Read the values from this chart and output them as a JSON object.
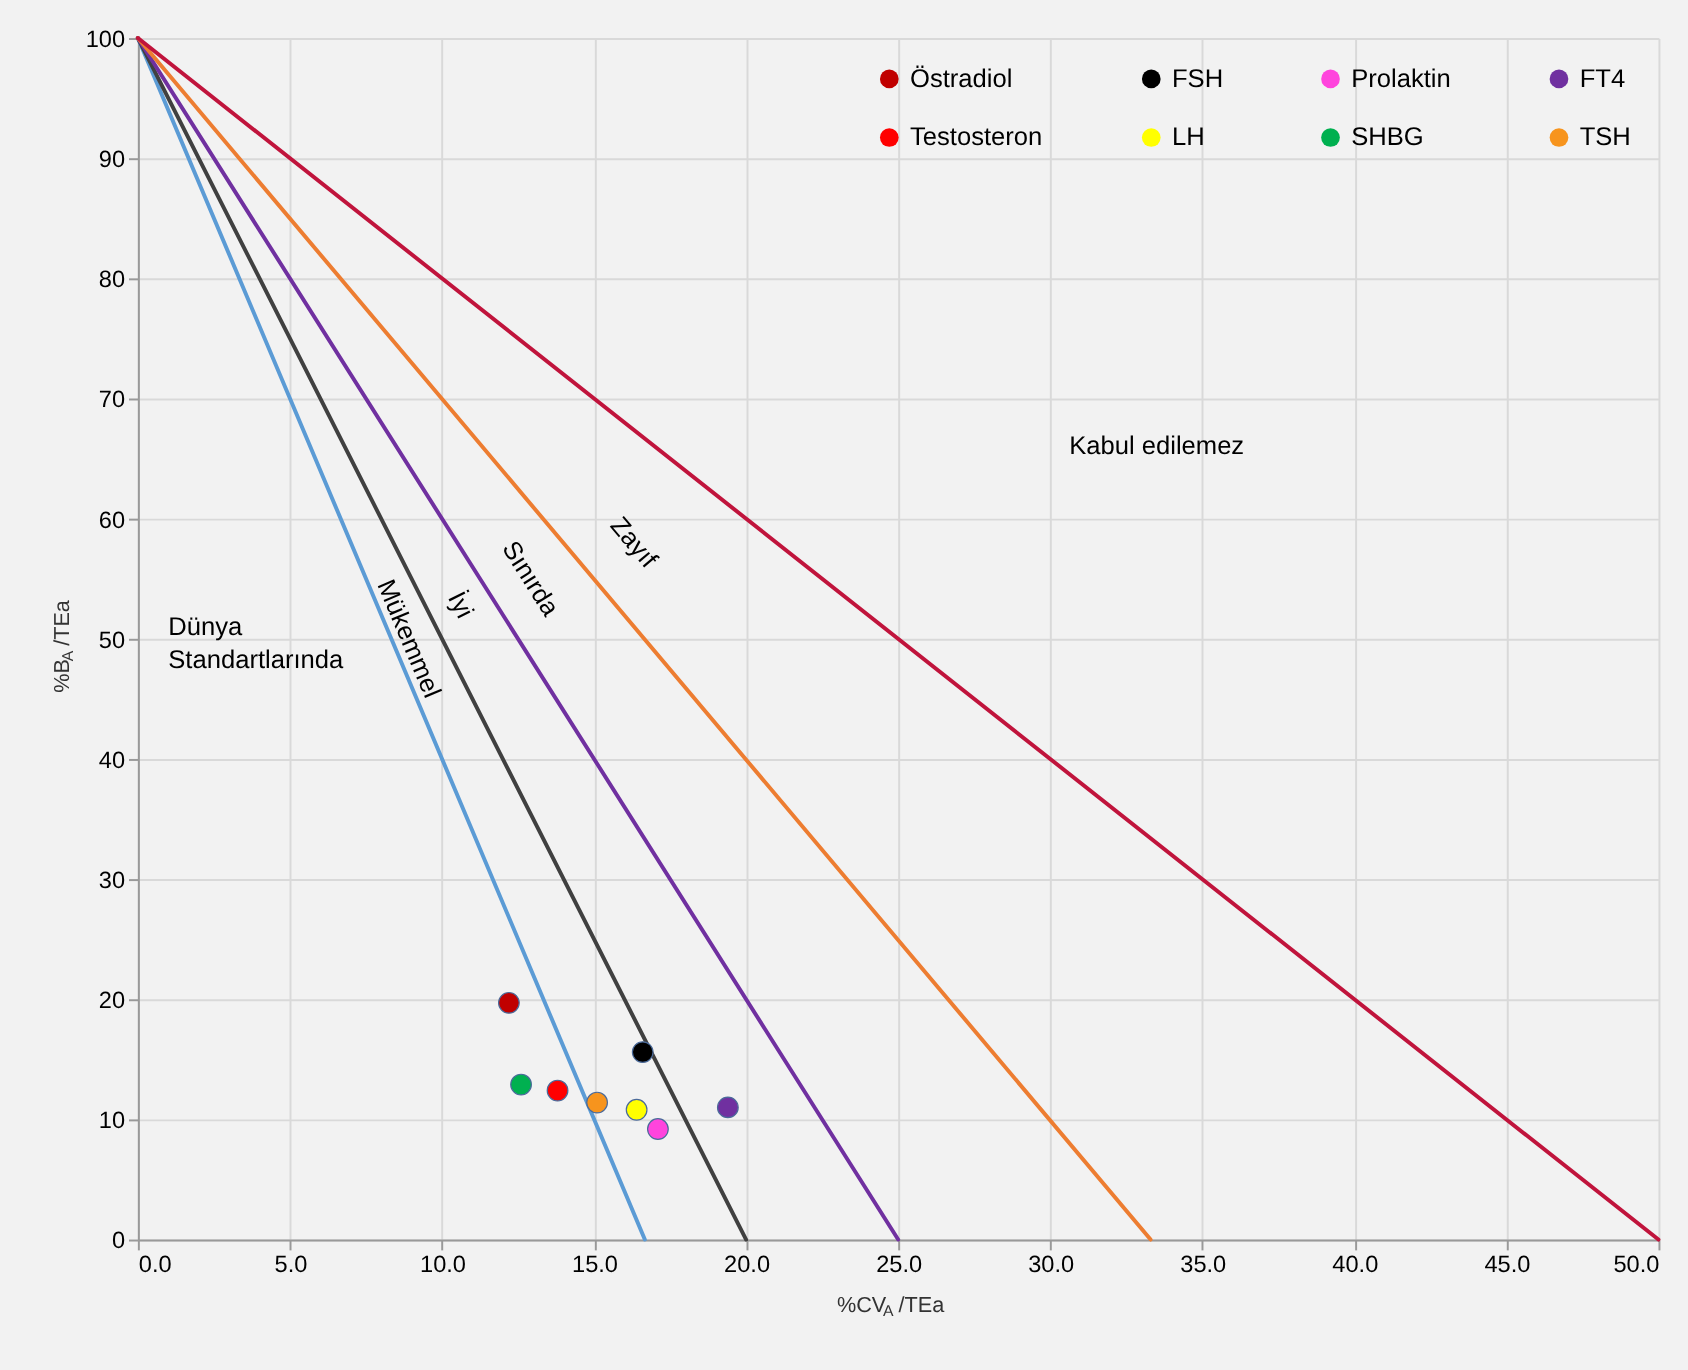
{
  "chart_data": {
    "type": "line",
    "xlabel": "%CV$_{A}$/TEa",
    "ylabel": "%B$_{A}$/TEa",
    "xlim": [
      0,
      50
    ],
    "ylim": [
      0,
      100
    ],
    "xticks": [
      {
        "value": 0,
        "label": "0.0"
      },
      {
        "value": 5,
        "label": "5.0"
      },
      {
        "value": 10,
        "label": "10.0"
      },
      {
        "value": 15,
        "label": "15.0"
      },
      {
        "value": 20,
        "label": "20.0"
      },
      {
        "value": 25,
        "label": "25.0"
      },
      {
        "value": 30,
        "label": "30.0"
      },
      {
        "value": 35,
        "label": "35.0"
      },
      {
        "value": 40,
        "label": "40.0"
      },
      {
        "value": 45,
        "label": "45.0"
      },
      {
        "value": 50,
        "label": "50.0"
      }
    ],
    "yticks": [
      0,
      10,
      20,
      30,
      40,
      50,
      60,
      70,
      80,
      90,
      100
    ],
    "grid": true,
    "legend": "top right",
    "series": [
      {
        "color": "#5b9bd5",
        "x": [
          0,
          16.67
        ],
        "values": [
          100,
          0
        ]
      },
      {
        "color": "#404040",
        "x": [
          0,
          20
        ],
        "values": [
          100,
          0
        ]
      },
      {
        "color": "#7030a0",
        "x": [
          0,
          25
        ],
        "values": [
          100,
          0
        ]
      },
      {
        "color": "#ed7d31",
        "x": [
          0,
          33.3
        ],
        "values": [
          100,
          0
        ]
      },
      {
        "color": "#c0143c",
        "x": [
          0,
          50
        ],
        "values": [
          100,
          0
        ]
      },
      {
        "type": "scatter",
        "name": "Östradiol",
        "color": "#c00000",
        "x": [
          12.2
        ],
        "values": [
          19.7
        ]
      },
      {
        "type": "scatter",
        "name": "Testosteron",
        "color": "#ff0000",
        "x": [
          13.8
        ],
        "values": [
          12.4
        ]
      },
      {
        "type": "scatter",
        "name": "FSH",
        "color": "#000000",
        "x": [
          16.6
        ],
        "values": [
          15.6
        ]
      },
      {
        "type": "scatter",
        "name": "LH",
        "color": "#ffff00",
        "x": [
          16.4
        ],
        "values": [
          10.8
        ]
      },
      {
        "type": "scatter",
        "name": "Prolaktin",
        "color": "#ff44dd",
        "x": [
          17.1
        ],
        "values": [
          9.2
        ]
      },
      {
        "type": "scatter",
        "name": "SHBG",
        "color": "#00b050",
        "x": [
          12.6
        ],
        "values": [
          12.9
        ]
      },
      {
        "type": "scatter",
        "name": "FT4",
        "color": "#7030a0",
        "x": [
          19.4
        ],
        "values": [
          11.0
        ]
      },
      {
        "type": "scatter",
        "name": "TSH",
        "color": "#f7941d",
        "x": [
          15.1
        ],
        "values": [
          11.4
        ]
      }
    ],
    "annotations": [
      "Mükemmel",
      "İyi",
      "Sınırda",
      "Zayıf",
      "Kabul edilemez",
      "Dünya\nStandartlarında"
    ]
  }
}
